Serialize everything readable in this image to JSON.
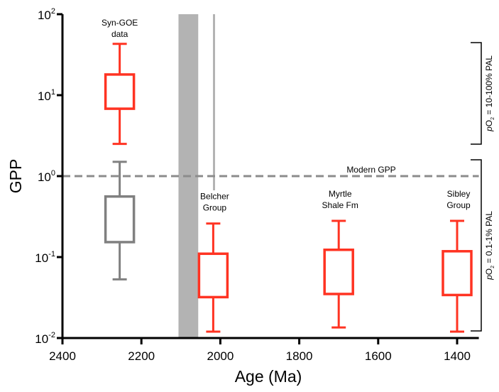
{
  "chart_data": {
    "type": "box",
    "title": "",
    "xlabel": "Age (Ma)",
    "ylabel": "GPP",
    "xlim": [
      2400,
      1345
    ],
    "ylim": [
      0.01,
      100
    ],
    "yscale": "log",
    "grid": false,
    "xticks": [
      "2400",
      "2200",
      "2000",
      "1800",
      "1600",
      "1400"
    ],
    "yticks": [
      {
        "base": "10",
        "exp": "2"
      },
      {
        "base": "10",
        "exp": "1"
      },
      {
        "base": "10",
        "exp": "0"
      },
      {
        "base": "10",
        "exp": "-1"
      },
      {
        "base": "10",
        "exp": "-2"
      }
    ],
    "boxes": [
      {
        "label_lines": [
          "Syn-GOE",
          "data"
        ],
        "age": 2255,
        "whisker_high": 43,
        "q3": 18,
        "q1": 6.8,
        "whisker_low": 2.5,
        "color": "#ff3322"
      },
      {
        "label_lines": [],
        "age": 2255,
        "whisker_high": 1.5,
        "q3": 0.56,
        "q1": 0.153,
        "whisker_low": 0.053,
        "color": "#808080"
      },
      {
        "label_lines": [
          "Belcher",
          "Group"
        ],
        "age": 2018,
        "whisker_high": 0.26,
        "q3": 0.11,
        "q1": 0.032,
        "whisker_low": 0.012,
        "color": "#ff3322"
      },
      {
        "label_lines": [
          "Myrtle",
          "Shale Fm"
        ],
        "age": 1700,
        "whisker_high": 0.28,
        "q3": 0.123,
        "q1": 0.035,
        "whisker_low": 0.0135,
        "color": "#ff3322"
      },
      {
        "label_lines": [
          "Sibley",
          "Group"
        ],
        "age": 1400,
        "whisker_high": 0.28,
        "q3": 0.118,
        "q1": 0.034,
        "whisker_low": 0.012,
        "color": "#ff3322"
      }
    ],
    "shaded_band": {
      "from": 2106,
      "to": 2056,
      "color": "#b3b3b3"
    },
    "vertical_line": {
      "age": 2016,
      "color": "#b3b3b3"
    },
    "reference_line": {
      "value": 1,
      "label": "Modern GPP",
      "color": "#8c8c8c",
      "style": "dashed"
    },
    "brackets": [
      {
        "from": 10,
        "to": 100,
        "label_italic": "p",
        "label_main": "O",
        "label_sub": "2",
        "label_rest": " = 10-100% PAL"
      },
      {
        "from": 0.01,
        "to": 1,
        "label_italic": "p",
        "label_main": "O",
        "label_sub": "2",
        "label_rest": " = 0.1-1% PAL"
      }
    ]
  }
}
